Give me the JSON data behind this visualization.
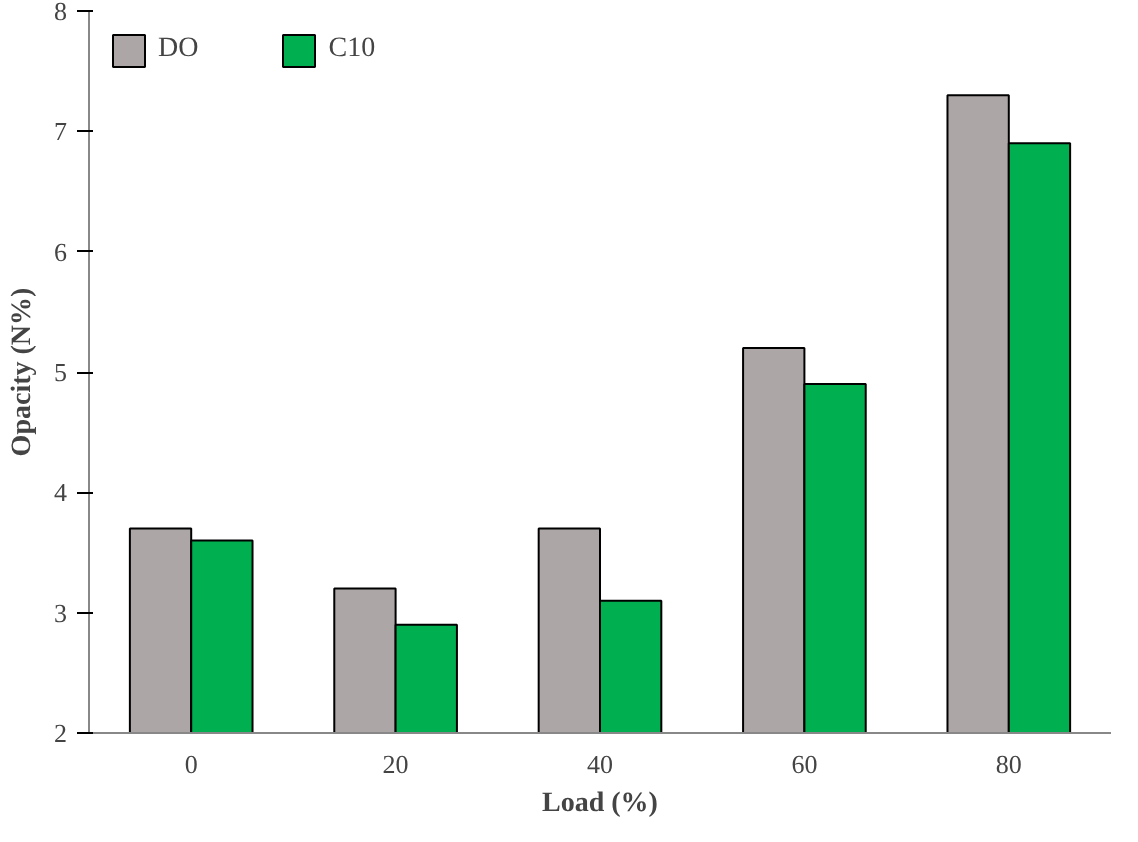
{
  "chart_data": {
    "type": "bar",
    "xlabel": "Load (%)",
    "ylabel": "Opacity (N%)",
    "categories": [
      "0",
      "20",
      "40",
      "60",
      "80"
    ],
    "series": [
      {
        "name": "DO",
        "color": "#aca6a6",
        "values": [
          3.7,
          3.2,
          3.7,
          5.2,
          7.3
        ]
      },
      {
        "name": "C10",
        "color": "#00b050",
        "values": [
          3.6,
          2.9,
          3.1,
          4.9,
          6.9
        ]
      }
    ],
    "ylim": [
      2,
      8
    ],
    "yticks": [
      2,
      3,
      4,
      5,
      6,
      7,
      8
    ],
    "grid": false,
    "legend": "top left"
  }
}
